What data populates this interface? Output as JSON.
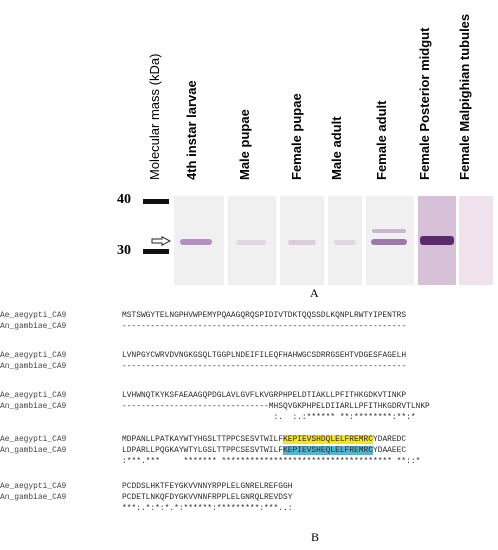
{
  "panel_a": {
    "label": "A",
    "y_axis_label": "Molecular mass (kDa)",
    "markers": [
      "40",
      "30"
    ],
    "lanes": [
      {
        "label": "4th instar larvae",
        "band_intensity": 0.45
      },
      {
        "label": "Male pupae",
        "band_intensity": 0.12
      },
      {
        "label": "Female pupae",
        "band_intensity": 0.15
      },
      {
        "label": "Male adult",
        "band_intensity": 0.12
      },
      {
        "label": "Female adult",
        "band_intensity": 0.45
      },
      {
        "label": "Female Posterior midgut",
        "band_intensity": 1.0
      },
      {
        "label": "Female Malpighian tubules",
        "band_intensity": 0.0
      }
    ],
    "colors": {
      "membrane": "#f1f0f1",
      "band": "#5a2a6e",
      "midgut_lane": "#cdb3d1",
      "tubule_lane": "#efe0ea"
    }
  },
  "panel_b": {
    "label": "B",
    "blocks": [
      {
        "rows": [
          {
            "name": "Ae_aegypti_CA9",
            "seq": "MSTSWGYTELNGPHVWPEMYPQAAGQRQSPIDIVTDKTQQSSDLKQNPLRWTYIPENTRS"
          },
          {
            "name": "An_gambiae_CA9",
            "seq": "------------------------------------------------------------"
          }
        ],
        "consensus": ""
      },
      {
        "rows": [
          {
            "name": "Ae_aegypti_CA9",
            "seq": "LVNPGYCWRVDVNGKGSQLTGGPLNDEIFILEQFHAHWGCSDRRGSEHTVDGESFAGELH"
          },
          {
            "name": "An_gambiae_CA9",
            "seq": "------------------------------------------------------------"
          }
        ],
        "consensus": ""
      },
      {
        "rows": [
          {
            "name": "Ae_aegypti_CA9",
            "seq": "LVHWNQTKYKSFAEAAGQPDGLAVLGVFLKVGRPHPELDTIAKLLPFITHKGDKVTINKP"
          },
          {
            "name": "An_gambiae_CA9",
            "seq": "-------------------------------MHSQVGKPHPELDIIARLLPFITHKGDRVTLNKP"
          }
        ],
        "consensus": "                                :.  :.:****** **:********:**:*"
      },
      {
        "rows": [
          {
            "name": "Ae_aegypti_CA9",
            "pre": "MDPANLLPATKAYWTYHGSLTTPPCSESVTWILF",
            "hl": "KEPIEVSHDQLELFREMRC",
            "post": "YDAREDC"
          },
          {
            "name": "An_gambiae_CA9",
            "pre": "LDPARLLPQGKAYWTYLGSLTTPPCSESVTWILF",
            "hl": "KEPIEVSHEQLELFREMRC",
            "post": "YDAAEEC"
          }
        ],
        "consensus": ":***.***     ******* ************************************ **::*"
      },
      {
        "rows": [
          {
            "name": "Ae_aegypti_CA9",
            "seq": "PCDDSLHKTFEYGKVVNNYRPPLELGNRELREFGGH"
          },
          {
            "name": "An_gambiae_CA9",
            "seq": "PCDETLNKQFDYGKVVNNFRPPLELGNRQLREVDSY"
          }
        ],
        "consensus": "***:.*:*:*.*:******:*********:***..:"
      }
    ],
    "highlight_colors": {
      "aegypti": "#f4e61c",
      "gambiae": "#5ab3cc"
    }
  }
}
